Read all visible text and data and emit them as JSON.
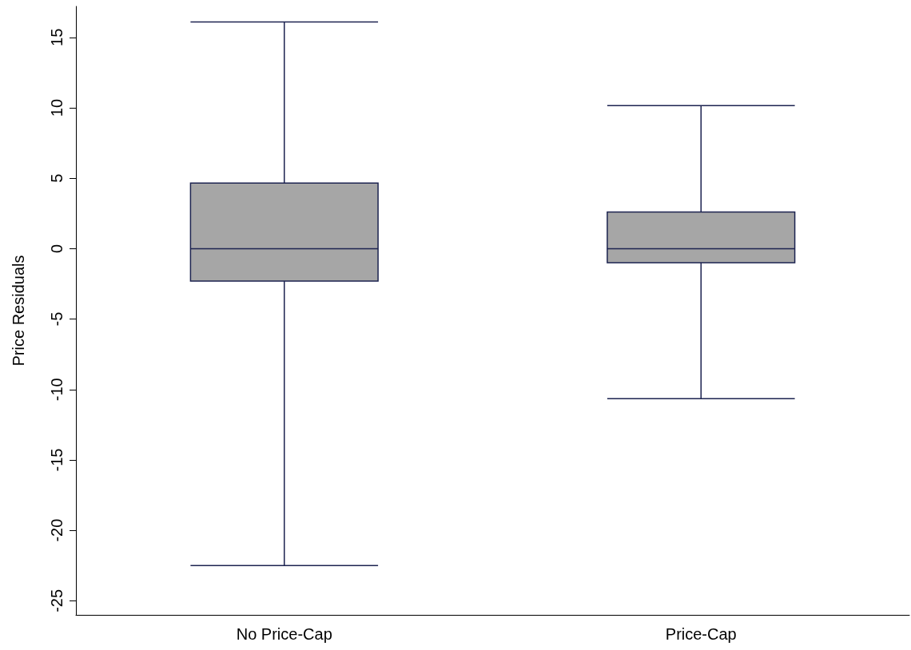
{
  "chart_data": {
    "type": "box",
    "ylabel": "Price Residuals",
    "categories": [
      "No Price-Cap",
      "Price-Cap"
    ],
    "boxes": [
      {
        "low": -22.5,
        "q1": -2.3,
        "median": 0,
        "q3": 4.65,
        "high": 16.1
      },
      {
        "low": -10.65,
        "q1": -1,
        "median": 0,
        "q3": 2.6,
        "high": 10.15
      }
    ],
    "color": "#a6a6a6",
    "ylim": [
      -26,
      17.2
    ],
    "yticks": [
      -25,
      -20,
      -15,
      -10,
      -5,
      0,
      5,
      10,
      15
    ],
    "grid": false
  }
}
